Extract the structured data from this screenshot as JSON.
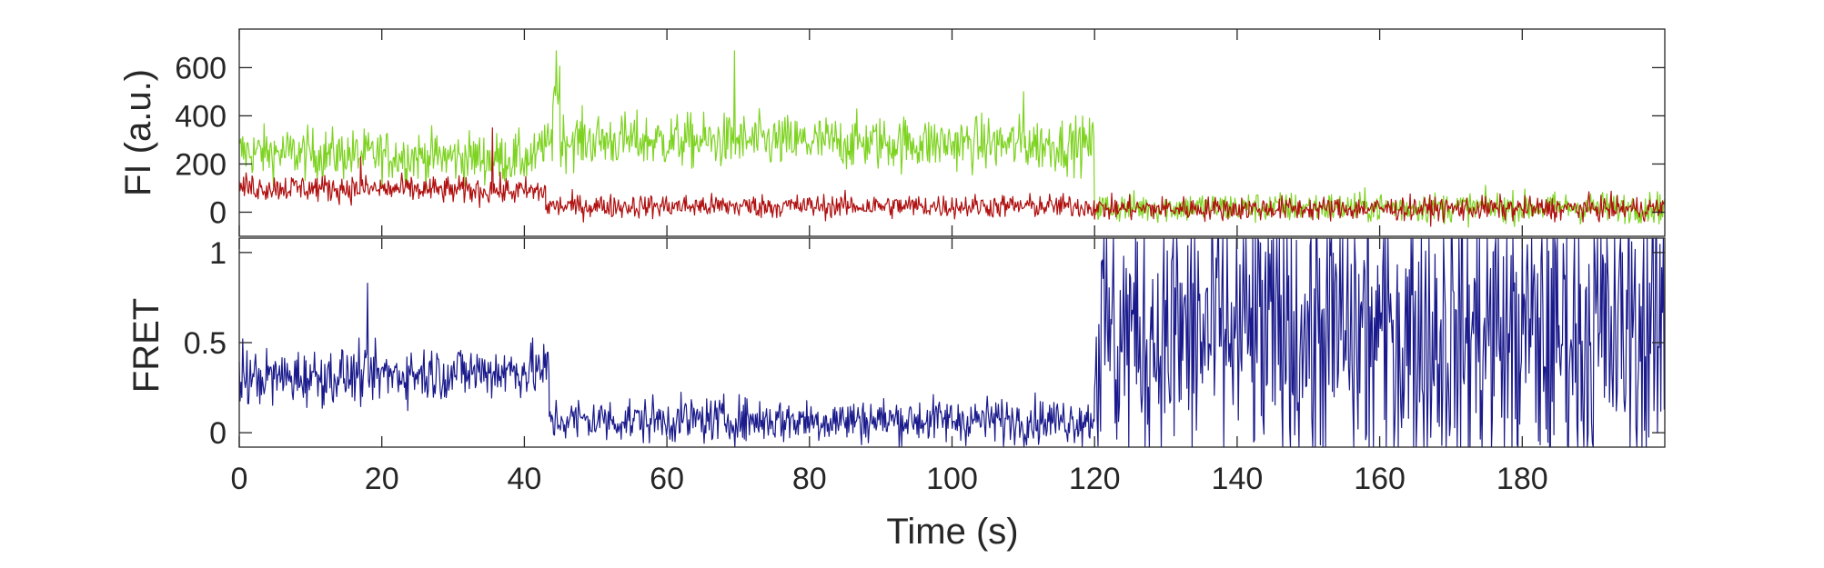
{
  "chart_data": [
    {
      "type": "line",
      "ylabel": "FI (a.u.)",
      "xlabel": "",
      "xlim": [
        0,
        200
      ],
      "ylim": [
        -100,
        760
      ],
      "y_ticks": [
        "0",
        "200",
        "400",
        "600"
      ],
      "y_tick_values": [
        0,
        200,
        400,
        600
      ],
      "grid": false,
      "series": [
        {
          "color": "#7ed321",
          "segments": [
            {
              "start": 0,
              "end": 42,
              "mean": 250,
              "noise": 75,
              "drift": -30
            },
            {
              "start": 42,
              "end": 44,
              "mean": 280,
              "noise": 60,
              "drift": 0
            },
            {
              "start": 44,
              "end": 45,
              "mean": 520,
              "noise": 120,
              "drift": 0
            },
            {
              "start": 45,
              "end": 120,
              "mean": 300,
              "noise": 80,
              "drift": -20
            },
            {
              "start": 120,
              "end": 200,
              "mean": 20,
              "noise": 45,
              "drift": 0
            }
          ],
          "spikes": [
            {
              "x": 44.5,
              "y": 670
            },
            {
              "x": 69.5,
              "y": 670
            },
            {
              "x": 110,
              "y": 500
            }
          ]
        },
        {
          "color": "#b01010",
          "segments": [
            {
              "start": 0,
              "end": 43,
              "mean": 105,
              "noise": 40,
              "drift": -20
            },
            {
              "start": 43,
              "end": 120,
              "mean": 25,
              "noise": 35,
              "drift": 0
            },
            {
              "start": 120,
              "end": 200,
              "mean": 15,
              "noise": 35,
              "drift": 0
            }
          ],
          "spikes": [
            {
              "x": 35.5,
              "y": 350
            },
            {
              "x": 17,
              "y": 230
            }
          ]
        }
      ]
    },
    {
      "type": "line",
      "ylabel": "FRET",
      "xlabel": "Time (s)",
      "xlim": [
        0,
        200
      ],
      "ylim": [
        -0.08,
        1.08
      ],
      "y_ticks": [
        "0",
        "0.5",
        "1"
      ],
      "y_tick_values": [
        0,
        0.5,
        1
      ],
      "x_ticks": [
        "0",
        "20",
        "40",
        "60",
        "80",
        "100",
        "120",
        "140",
        "160",
        "180"
      ],
      "x_tick_values": [
        0,
        20,
        40,
        60,
        80,
        100,
        120,
        140,
        160,
        180
      ],
      "grid": false,
      "series": [
        {
          "color": "#1a1a8c",
          "segments": [
            {
              "start": 0,
              "end": 43.5,
              "mean": 0.3,
              "noise": 0.11,
              "drift": 0.05,
              "clip": [
                -0.08,
                1.08
              ]
            },
            {
              "start": 43.5,
              "end": 120,
              "mean": 0.07,
              "noise": 0.09,
              "drift": 0,
              "clip": [
                -0.08,
                1.08
              ]
            },
            {
              "start": 120,
              "end": 200,
              "mean": 0.55,
              "noise": 0.6,
              "drift": 0,
              "clip": [
                -0.08,
                1.08
              ]
            }
          ],
          "spikes": [
            {
              "x": 18,
              "y": 0.83
            },
            {
              "x": 0.5,
              "y": 0.52
            }
          ]
        }
      ]
    }
  ]
}
